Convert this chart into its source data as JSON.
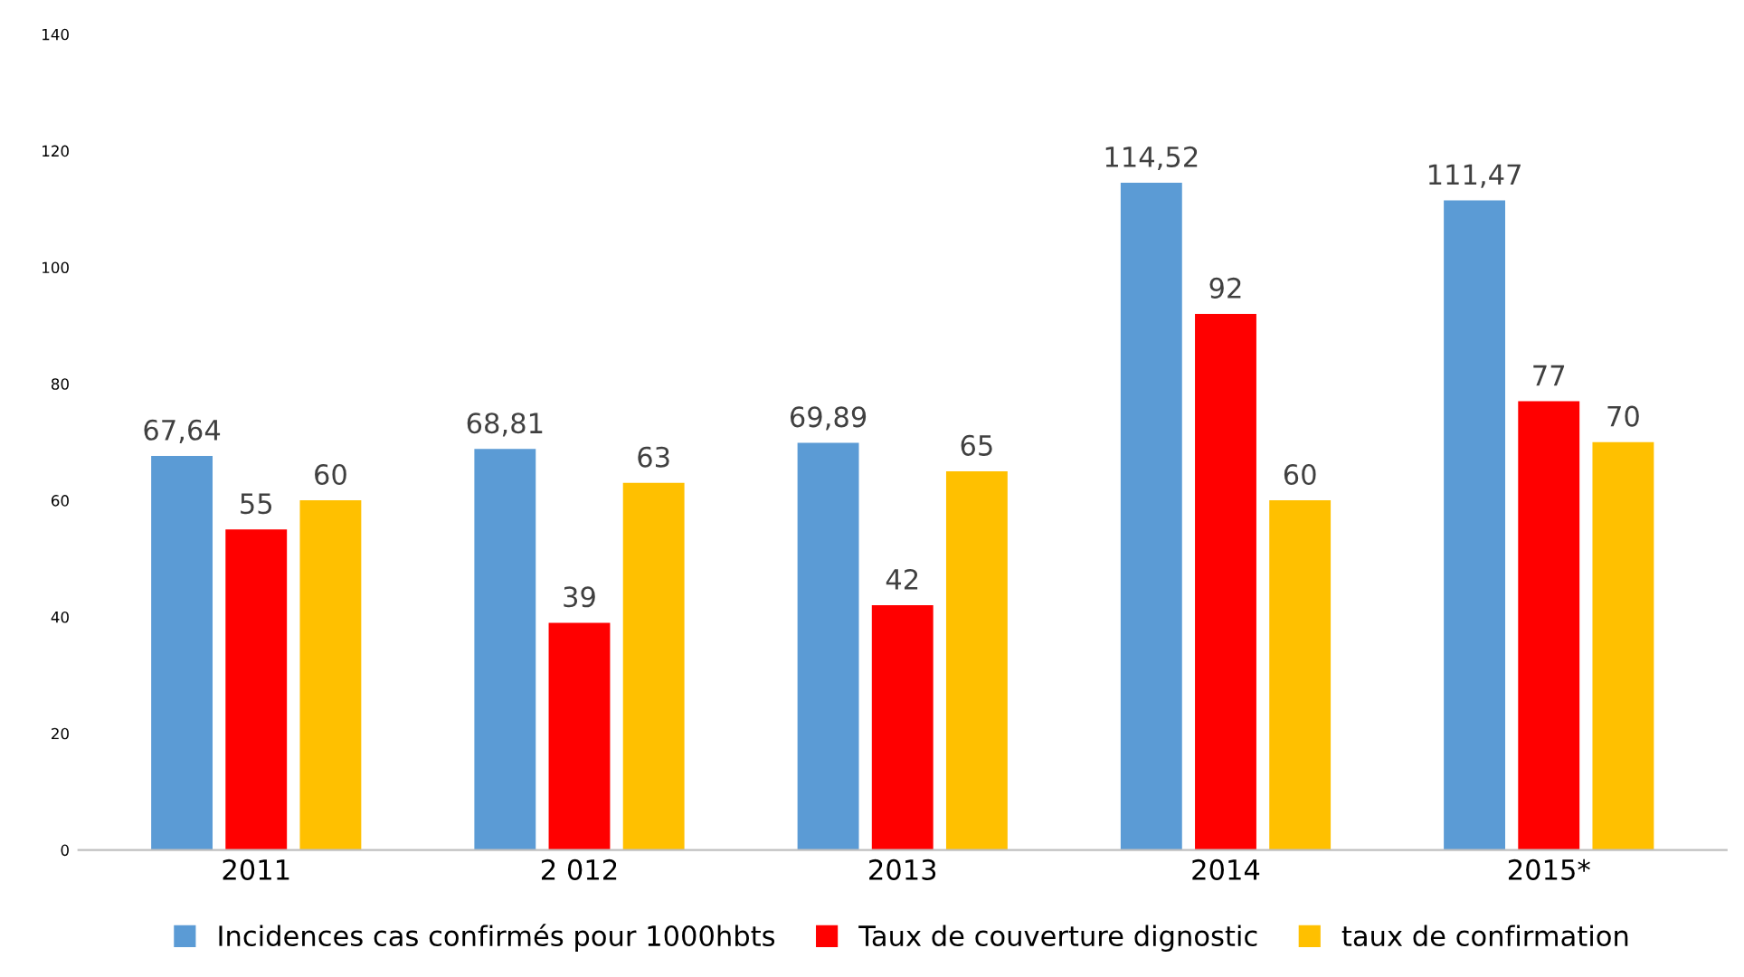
{
  "chart_data": {
    "type": "bar",
    "categories": [
      "2011",
      "2 012",
      "2013",
      "2014",
      "2015*"
    ],
    "series": [
      {
        "name": "Incidences cas confirmés pour 1000hbts",
        "color": "#5b9bd5",
        "values": [
          67.64,
          68.81,
          69.89,
          114.52,
          111.47
        ],
        "value_labels": [
          "67,64",
          "68,81",
          "69,89",
          "114,52",
          "111,47"
        ]
      },
      {
        "name": "Taux de couverture dignostic",
        "color": "#ff0000",
        "values": [
          55,
          39,
          42,
          92,
          77
        ],
        "value_labels": [
          "55",
          "39",
          "42",
          "92",
          "77"
        ]
      },
      {
        "name": "taux de confirmation",
        "color": "#ffc000",
        "values": [
          60,
          63,
          65,
          60,
          70
        ],
        "value_labels": [
          "60",
          "63",
          "65",
          "60",
          "70"
        ]
      }
    ],
    "ylim": [
      0,
      140
    ],
    "yticks": [
      0,
      20,
      40,
      60,
      80,
      100,
      120,
      140
    ],
    "grid": false,
    "legend": "bottom"
  }
}
